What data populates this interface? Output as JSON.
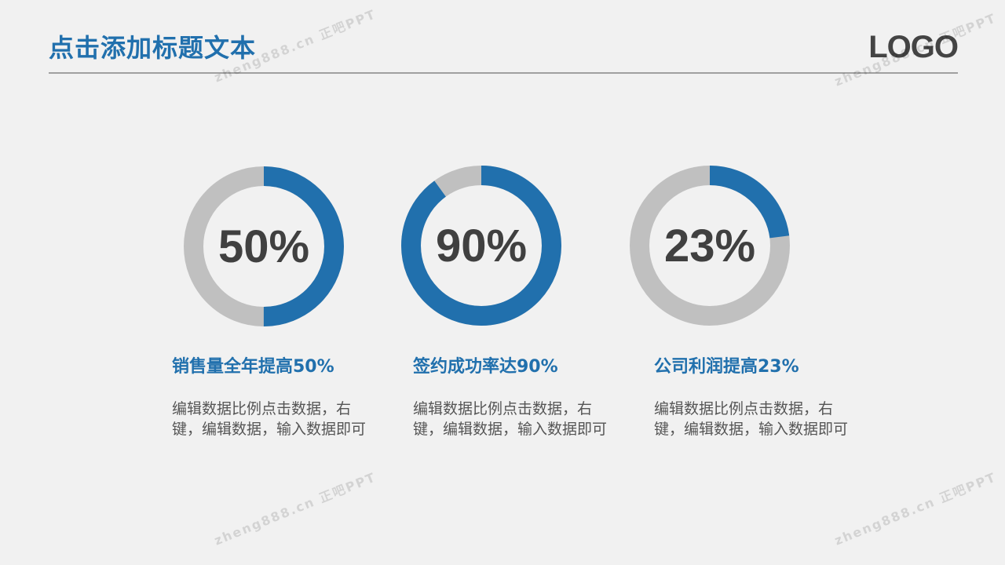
{
  "header": {
    "title": "点击添加标题文本",
    "logo": "LOGO"
  },
  "watermark": "zheng888.cn 正吧PPT",
  "colors": {
    "accent": "#2170ad",
    "remainder": "#c0c0c0",
    "background": "#f1f1f1"
  },
  "chart_data": [
    {
      "type": "pie",
      "variant": "donut",
      "values": [
        50,
        50
      ],
      "label": "50%",
      "heading": "销售量全年提高50%",
      "description": "编辑数据比例点击数据，右键，编辑数据，输入数据即可"
    },
    {
      "type": "pie",
      "variant": "donut",
      "values": [
        90,
        10
      ],
      "label": "90%",
      "heading": "签约成功率达90%",
      "description": "编辑数据比例点击数据，右键，编辑数据，输入数据即可"
    },
    {
      "type": "pie",
      "variant": "donut",
      "values": [
        23,
        77
      ],
      "label": "23%",
      "heading": "公司利润提高23%",
      "description": "编辑数据比例点击数据，右键，编辑数据，输入数据即可"
    }
  ]
}
